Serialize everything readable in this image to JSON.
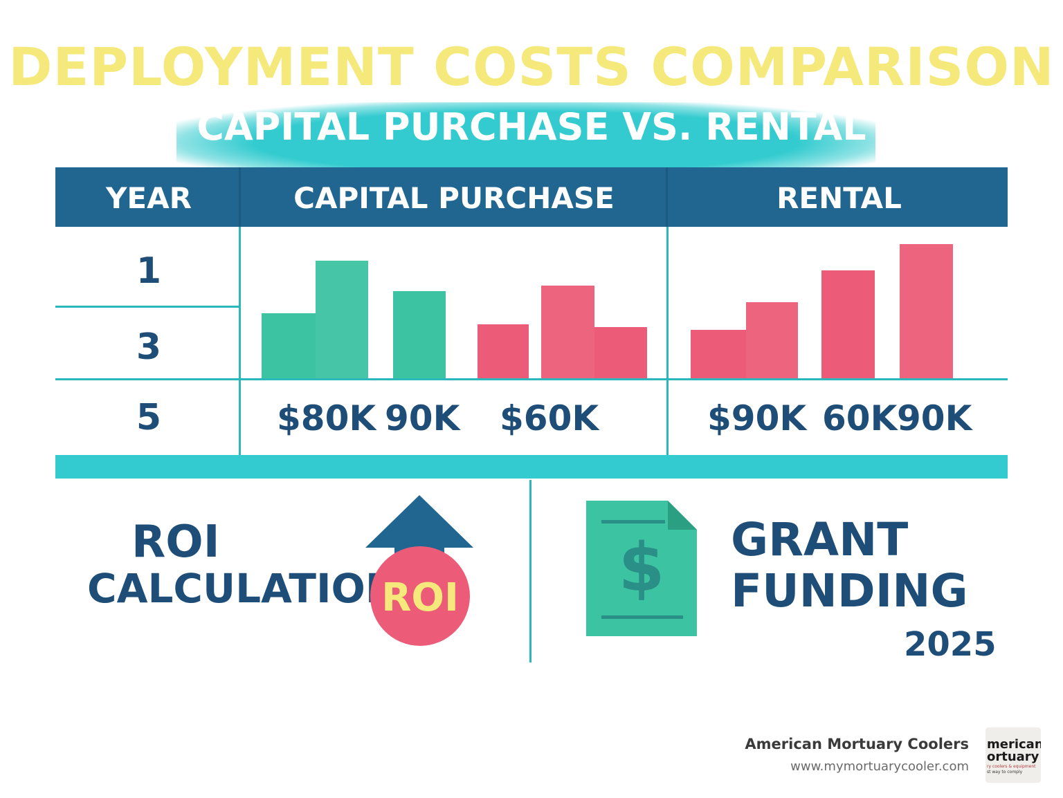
{
  "title": "DEPLOYMENT COSTS COMPARISON",
  "subtitle": "CAPITAL PURCHASE VS. RENTAL",
  "table": {
    "headers": [
      "YEAR",
      "CAPITAL PURCHASE",
      "RENTAL"
    ],
    "years": [
      "1",
      "3",
      "5"
    ],
    "capital_value_labels": [
      "$80K",
      "90K",
      "$60K"
    ],
    "rental_value_labels": [
      "$90K",
      "60K",
      "90K"
    ]
  },
  "roi": {
    "line1": "ROI",
    "line2": "CALCULATION",
    "badge": "ROI"
  },
  "grant": {
    "line1": "GRANT",
    "line2": "FUNDING",
    "year": "2025"
  },
  "brand": {
    "name": "American Mortuary Coolers",
    "url": "www.mymortuarycooler.com",
    "logo_line1": "merican",
    "logo_line2": "ortuary",
    "logo_line3": "ry coolers & equipment",
    "logo_line4": "st way to comply"
  },
  "colors": {
    "title": "#f4e97a",
    "teal": "#33cbcf",
    "header_blue": "#216690",
    "green_bar": "#3cc3a1",
    "red_bar": "#ec5c78",
    "text_blue": "#1e4e78"
  },
  "chart_data": {
    "type": "bar",
    "groups": [
      {
        "panel": "CAPITAL PURCHASE",
        "color": "#3cc3a1",
        "values": [
          47,
          85,
          63
        ]
      },
      {
        "panel": "CAPITAL PURCHASE",
        "color": "#ec5c78",
        "values": [
          39,
          67,
          37
        ]
      },
      {
        "panel": "RENTAL",
        "color": "#ec5c78",
        "values": [
          35,
          55,
          78,
          97
        ]
      }
    ]
  }
}
